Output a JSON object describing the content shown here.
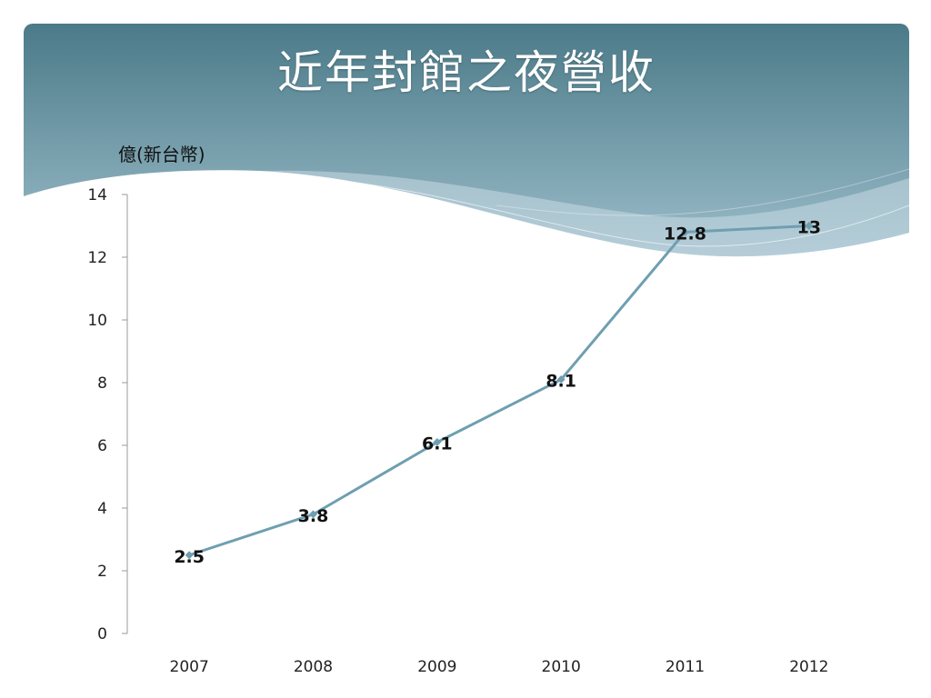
{
  "slide": {
    "title": "近年封館之夜營收"
  },
  "chart_data": {
    "type": "line",
    "title": "近年封館之夜營收",
    "ylabel": "億(新台幣)",
    "xlabel": "",
    "categories": [
      "2007",
      "2008",
      "2009",
      "2010",
      "2011",
      "2012"
    ],
    "series": [
      {
        "values": [
          2.5,
          3.8,
          6.1,
          8.1,
          12.8,
          13
        ]
      }
    ],
    "data_labels": [
      "2.5",
      "3.8",
      "6.1",
      "8.1",
      "12.8",
      "13"
    ],
    "ylim": [
      0,
      14
    ],
    "yticks": [
      0,
      2,
      4,
      6,
      8,
      10,
      12,
      14
    ],
    "grid": false,
    "legend": "none",
    "line_color": "#6e9fb1",
    "marker_color": "#6e9fb1"
  },
  "theme": {
    "header_top": "#4b7a88",
    "header_bottom": "#8fb4c3",
    "wave_light": "#c9dbe3"
  }
}
